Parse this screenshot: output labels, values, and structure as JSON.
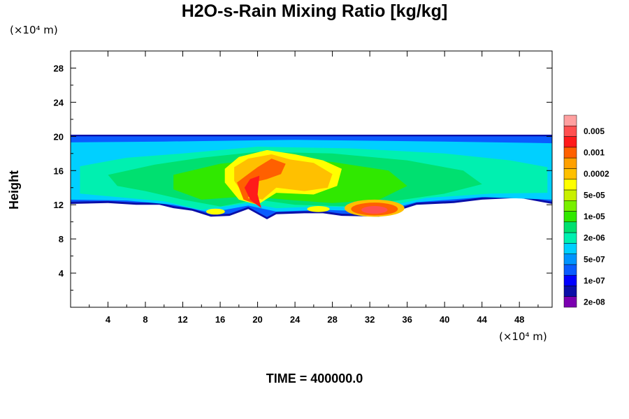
{
  "chart_data": {
    "type": "heatmap",
    "title": "H2O-s-Rain Mixing Ratio [kg/kg]",
    "ylabel": "Height",
    "xunit": "(×10⁴ m)",
    "yunit": "(×10⁴ m)",
    "xlim": [
      0,
      51.5
    ],
    "ylim": [
      0,
      30
    ],
    "xticks": [
      4,
      8,
      12,
      16,
      20,
      24,
      28,
      32,
      36,
      40,
      44,
      48
    ],
    "yticks": [
      4,
      8,
      12,
      16,
      20,
      24,
      28
    ],
    "colorbar": {
      "colors": [
        "#7b00b0",
        "#0b0fa8",
        "#0000ff",
        "#0a5cff",
        "#0094ff",
        "#00d0ff",
        "#00f0b0",
        "#00e070",
        "#30e800",
        "#78f000",
        "#c8f000",
        "#ffff00",
        "#ffc000",
        "#ffa000",
        "#ff6000",
        "#ff1a1a",
        "#ff5050",
        "#ffa0a0"
      ],
      "labels": [
        "2e-08",
        "1e-07",
        "5e-07",
        "2e-06",
        "1e-05",
        "5e-05",
        "0.0002",
        "0.001",
        "0.005"
      ]
    }
  },
  "footer": {
    "time_text": "TIME = 400000.0"
  }
}
